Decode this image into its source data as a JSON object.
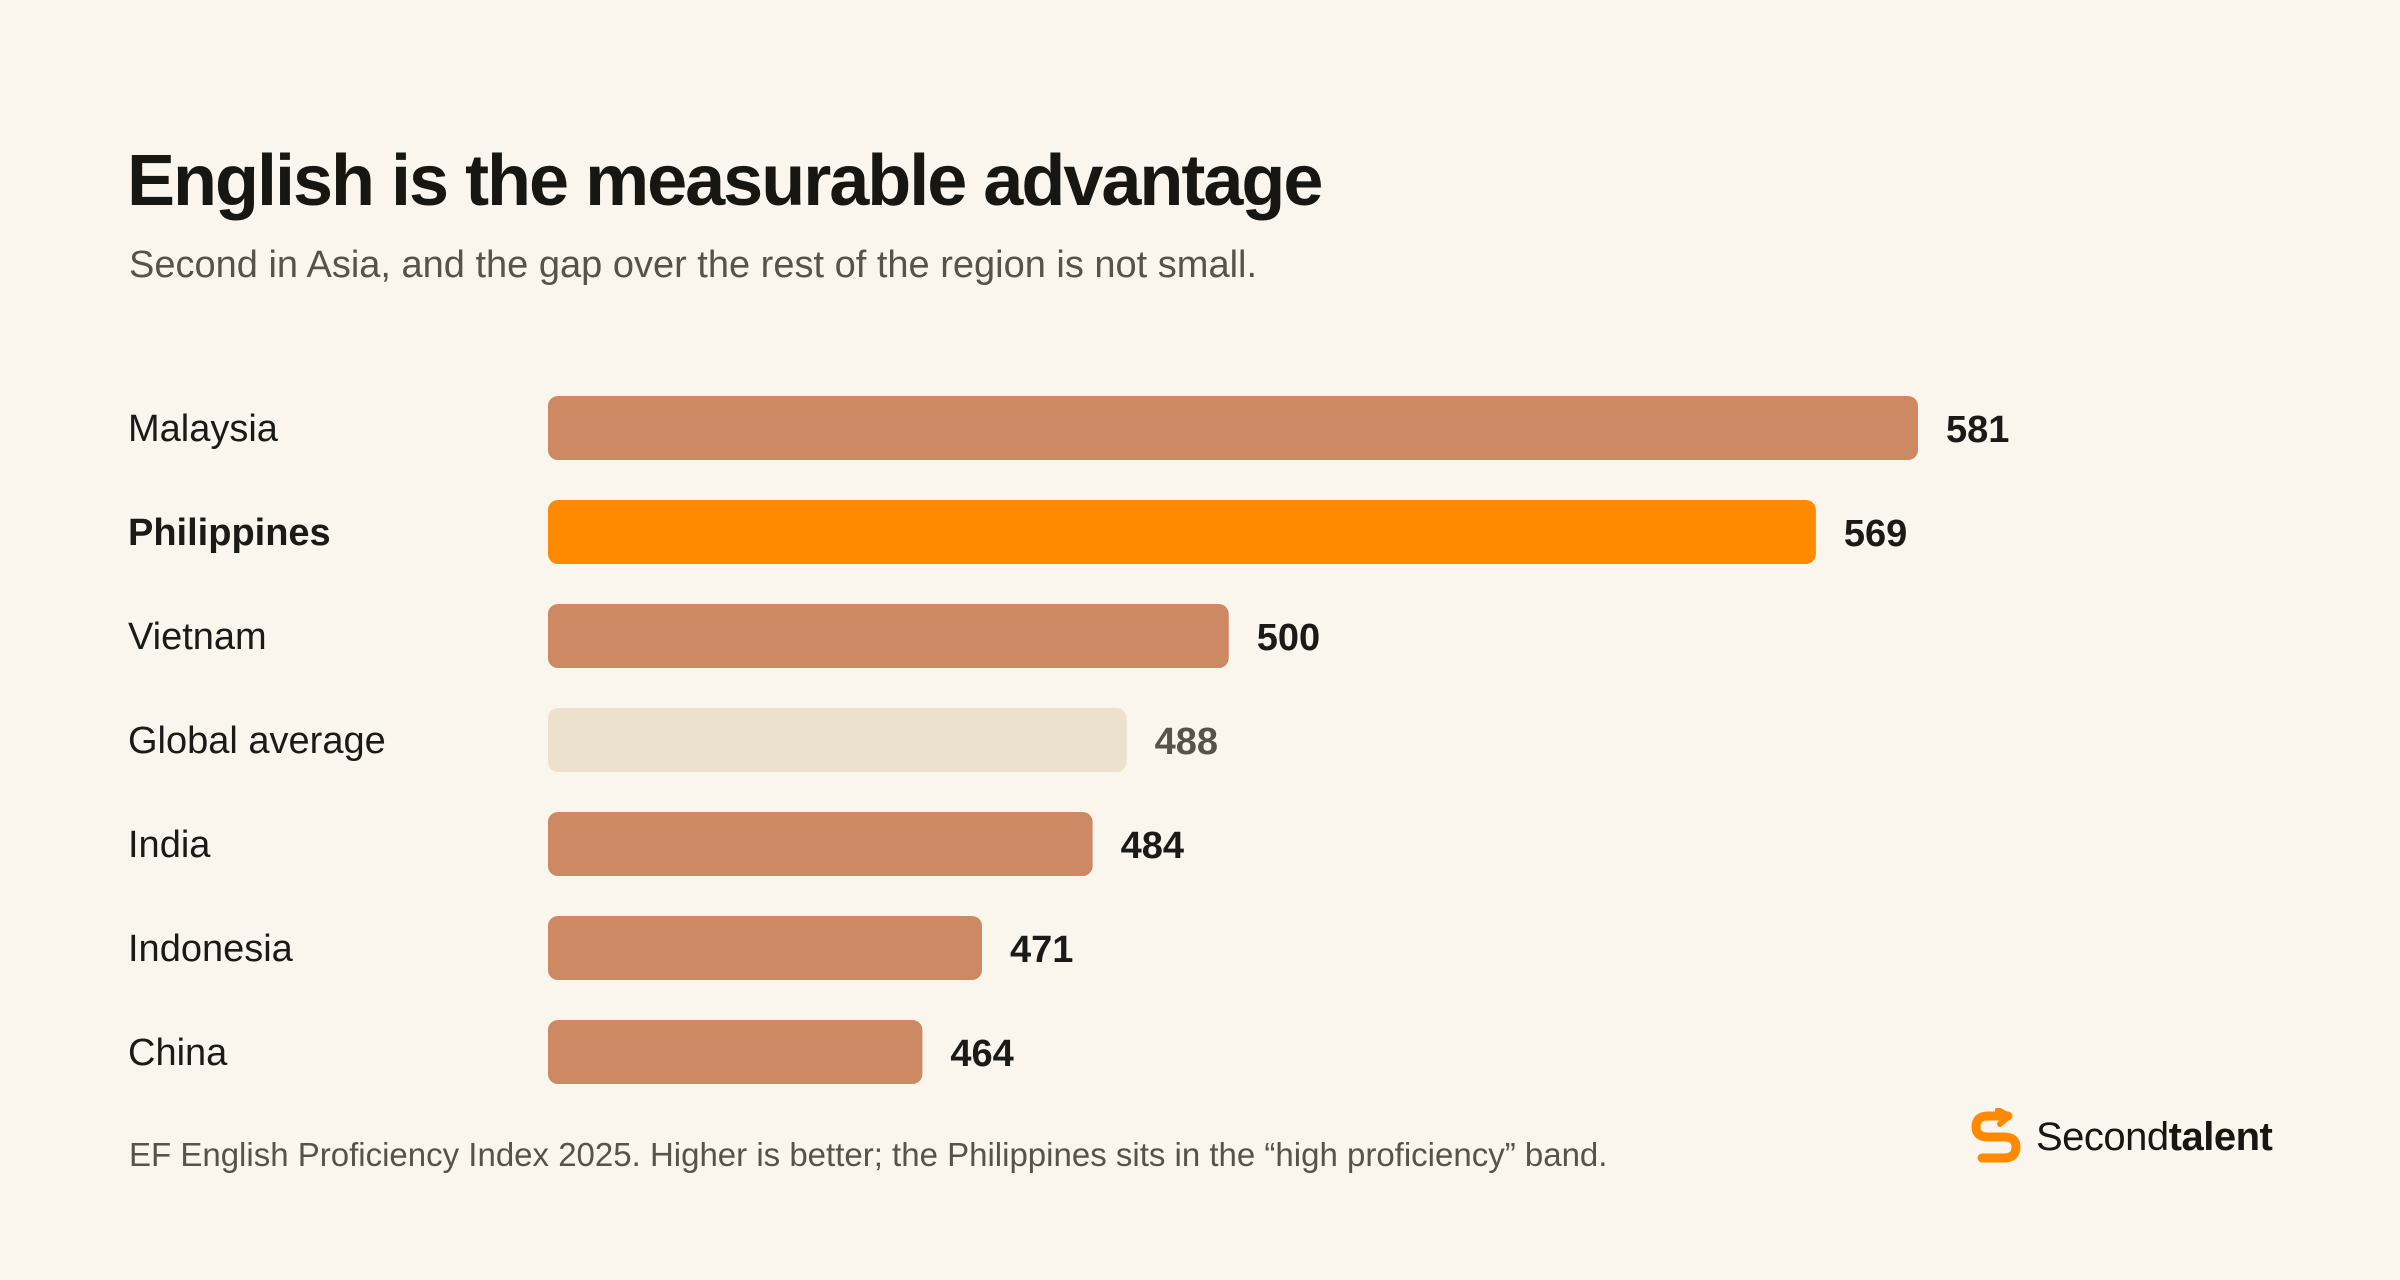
{
  "header": {
    "title": "English is the measurable advantage",
    "subtitle": "Second in Asia, and the gap over the rest of the region is not small."
  },
  "footnote": "EF English Proficiency Index 2025. Higher is better; the Philippines sits in the “high proficiency” band.",
  "brand": {
    "name_regular": "Second",
    "name_bold": "talent",
    "icon": "secondtalent-s-logo-icon",
    "color": "#ff8a00"
  },
  "colors": {
    "default_bar": "#cd8963",
    "highlight_bar": "#ff8a00",
    "average_bar": "#ebe1cd",
    "value_text": "#1c1a16",
    "average_value_text": "#57524a"
  },
  "chart_data": {
    "type": "bar",
    "orientation": "horizontal",
    "categories": [
      "Malaysia",
      "Philippines",
      "Vietnam",
      "Global average",
      "India",
      "Indonesia",
      "China"
    ],
    "values": [
      581,
      569,
      500,
      488,
      484,
      471,
      464
    ],
    "highlight": "Philippines",
    "reference": "Global average",
    "xlim": [
      420,
      581
    ],
    "grid": false,
    "legend": "none"
  }
}
